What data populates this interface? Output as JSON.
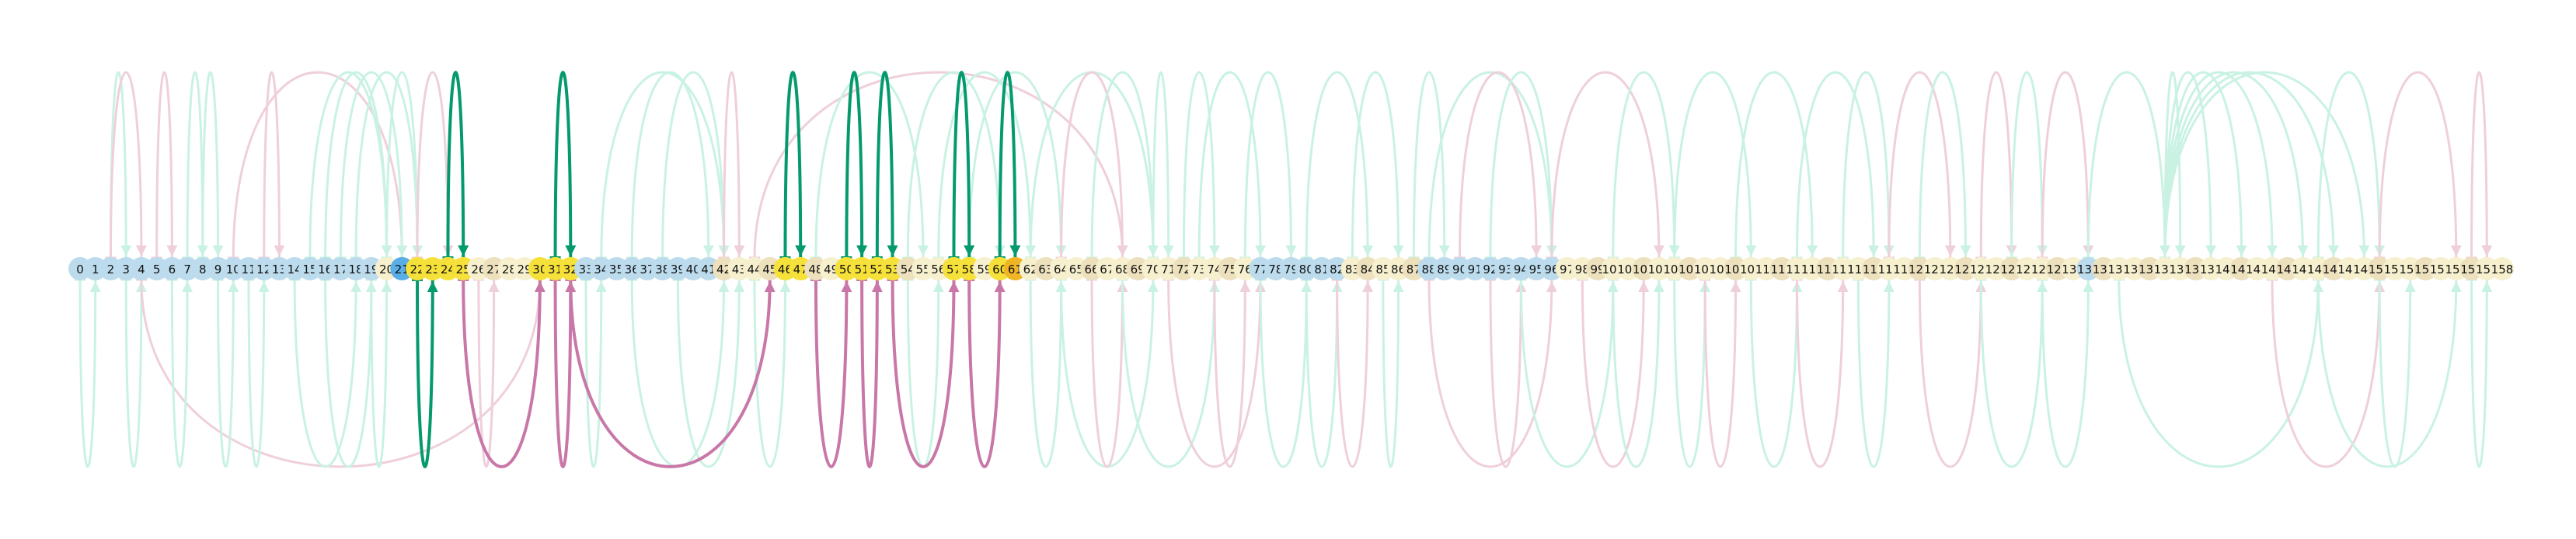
{
  "diagram": {
    "type": "arc-diagram",
    "node_labels": [
      "0",
      "1",
      "2",
      "3",
      "4",
      "5",
      "6",
      "7",
      "8",
      "9",
      "10",
      "11",
      "12",
      "13",
      "14",
      "15",
      "16",
      "17",
      "18",
      "19",
      "20",
      "21",
      "22",
      "23",
      "24",
      "25",
      "26",
      "27",
      "28",
      "29",
      "30",
      "31",
      "32",
      "33",
      "34",
      "35",
      "36",
      "37",
      "38",
      "39",
      "40",
      "41",
      "42",
      "43",
      "44",
      "45",
      "46",
      "47",
      "48",
      "49",
      "50",
      "51",
      "52",
      "53",
      "54",
      "55",
      "56",
      "57",
      "58",
      "59",
      "60",
      "61",
      "62",
      "63",
      "64",
      "65",
      "66",
      "67",
      "68",
      "69",
      "70",
      "71",
      "72",
      "73",
      "74",
      "75",
      "76",
      "77",
      "78",
      "79",
      "80",
      "81",
      "82",
      "83",
      "84",
      "85",
      "86",
      "87",
      "88",
      "89",
      "90",
      "91",
      "92",
      "93",
      "94",
      "95",
      "96",
      "97",
      "98",
      "99",
      "100",
      "101",
      "102",
      "103",
      "104",
      "105",
      "106",
      "107",
      "108",
      "109",
      "110",
      "111",
      "112",
      "113",
      "114",
      "115",
      "116",
      "117",
      "118",
      "119",
      "120",
      "121",
      "122",
      "123",
      "124",
      "125",
      "126",
      "127",
      "128",
      "129",
      "130",
      "131",
      "132",
      "133",
      "134",
      "135",
      "136",
      "137",
      "138",
      "139",
      "140",
      "141",
      "142",
      "143",
      "144",
      "145",
      "146",
      "147",
      "148",
      "149",
      "150",
      "151",
      "152",
      "153",
      "154",
      "155",
      "156",
      "157",
      "158"
    ],
    "highlighted_nodes": [
      21,
      22,
      23,
      24,
      25,
      30,
      31,
      32,
      46,
      47,
      50,
      51,
      52,
      53,
      57,
      58,
      60,
      61
    ],
    "highlight_edges": [
      {
        "from": 24,
        "to": 25,
        "side": "top",
        "color": "green"
      },
      {
        "from": 31,
        "to": 32,
        "side": "top",
        "color": "green"
      },
      {
        "from": 46,
        "to": 47,
        "side": "top",
        "color": "green"
      },
      {
        "from": 50,
        "to": 51,
        "side": "top",
        "color": "green"
      },
      {
        "from": 52,
        "to": 53,
        "side": "top",
        "color": "green"
      },
      {
        "from": 57,
        "to": 58,
        "side": "top",
        "color": "green"
      },
      {
        "from": 60,
        "to": 61,
        "side": "top",
        "color": "green"
      },
      {
        "from": 22,
        "to": 23,
        "side": "bottom",
        "color": "green"
      },
      {
        "from": 25,
        "to": 30,
        "side": "bottom",
        "color": "pink"
      },
      {
        "from": 31,
        "to": 32,
        "side": "bottom",
        "color": "pink"
      },
      {
        "from": 32,
        "to": 45,
        "side": "bottom",
        "color": "pink"
      },
      {
        "from": 48,
        "to": 50,
        "side": "bottom",
        "color": "pink"
      },
      {
        "from": 51,
        "to": 52,
        "side": "bottom",
        "color": "pink"
      },
      {
        "from": 53,
        "to": 57,
        "side": "bottom",
        "color": "pink"
      },
      {
        "from": 58,
        "to": 60,
        "side": "bottom",
        "color": "pink"
      }
    ],
    "background_edges": [
      {
        "from": 2,
        "to": 3,
        "side": "top",
        "color": "mint"
      },
      {
        "from": 2,
        "to": 4,
        "side": "top",
        "color": "pink"
      },
      {
        "from": 5,
        "to": 6,
        "side": "top",
        "color": "pink"
      },
      {
        "from": 7,
        "to": 8,
        "side": "top",
        "color": "mint"
      },
      {
        "from": 8,
        "to": 9,
        "side": "top",
        "color": "mint"
      },
      {
        "from": 10,
        "to": 21,
        "side": "top",
        "color": "pink"
      },
      {
        "from": 12,
        "to": 13,
        "side": "top",
        "color": "pink"
      },
      {
        "from": 15,
        "to": 20,
        "side": "top",
        "color": "mint"
      },
      {
        "from": 16,
        "to": 20,
        "side": "top",
        "color": "mint"
      },
      {
        "from": 17,
        "to": 21,
        "side": "top",
        "color": "mint"
      },
      {
        "from": 18,
        "to": 22,
        "side": "top",
        "color": "mint"
      },
      {
        "from": 20,
        "to": 22,
        "side": "top",
        "color": "mint"
      },
      {
        "from": 22,
        "to": 24,
        "side": "top",
        "color": "pink"
      },
      {
        "from": 34,
        "to": 42,
        "side": "top",
        "color": "mint"
      },
      {
        "from": 36,
        "to": 41,
        "side": "top",
        "color": "mint"
      },
      {
        "from": 38,
        "to": 42,
        "side": "top",
        "color": "mint"
      },
      {
        "from": 42,
        "to": 43,
        "side": "top",
        "color": "pink"
      },
      {
        "from": 44,
        "to": 68,
        "side": "top",
        "color": "pink"
      },
      {
        "from": 48,
        "to": 55,
        "side": "top",
        "color": "mint"
      },
      {
        "from": 54,
        "to": 60,
        "side": "top",
        "color": "mint"
      },
      {
        "from": 56,
        "to": 62,
        "side": "top",
        "color": "mint"
      },
      {
        "from": 58,
        "to": 64,
        "side": "top",
        "color": "mint"
      },
      {
        "from": 62,
        "to": 70,
        "side": "top",
        "color": "mint"
      },
      {
        "from": 64,
        "to": 68,
        "side": "top",
        "color": "pink"
      },
      {
        "from": 66,
        "to": 70,
        "side": "top",
        "color": "mint"
      },
      {
        "from": 70,
        "to": 71,
        "side": "top",
        "color": "mint"
      },
      {
        "from": 72,
        "to": 74,
        "side": "top",
        "color": "mint"
      },
      {
        "from": 73,
        "to": 77,
        "side": "top",
        "color": "mint"
      },
      {
        "from": 76,
        "to": 79,
        "side": "top",
        "color": "mint"
      },
      {
        "from": 80,
        "to": 84,
        "side": "top",
        "color": "mint"
      },
      {
        "from": 83,
        "to": 86,
        "side": "top",
        "color": "mint"
      },
      {
        "from": 87,
        "to": 89,
        "side": "top",
        "color": "mint"
      },
      {
        "from": 88,
        "to": 96,
        "side": "top",
        "color": "mint"
      },
      {
        "from": 90,
        "to": 95,
        "side": "top",
        "color": "pink"
      },
      {
        "from": 92,
        "to": 96,
        "side": "top",
        "color": "mint"
      },
      {
        "from": 96,
        "to": 103,
        "side": "top",
        "color": "pink"
      },
      {
        "from": 100,
        "to": 104,
        "side": "top",
        "color": "mint"
      },
      {
        "from": 104,
        "to": 109,
        "side": "top",
        "color": "mint"
      },
      {
        "from": 108,
        "to": 113,
        "side": "top",
        "color": "mint"
      },
      {
        "from": 112,
        "to": 117,
        "side": "top",
        "color": "mint"
      },
      {
        "from": 115,
        "to": 118,
        "side": "top",
        "color": "mint"
      },
      {
        "from": 118,
        "to": 122,
        "side": "top",
        "color": "pink"
      },
      {
        "from": 120,
        "to": 123,
        "side": "top",
        "color": "mint"
      },
      {
        "from": 124,
        "to": 126,
        "side": "top",
        "color": "pink"
      },
      {
        "from": 126,
        "to": 128,
        "side": "top",
        "color": "mint"
      },
      {
        "from": 128,
        "to": 131,
        "side": "top",
        "color": "pink"
      },
      {
        "from": 131,
        "to": 136,
        "side": "top",
        "color": "mint"
      },
      {
        "from": 136,
        "to": 137,
        "side": "top",
        "color": "mint"
      },
      {
        "from": 136,
        "to": 139,
        "side": "top",
        "color": "mint"
      },
      {
        "from": 136,
        "to": 141,
        "side": "top",
        "color": "mint"
      },
      {
        "from": 136,
        "to": 143,
        "side": "top",
        "color": "mint"
      },
      {
        "from": 136,
        "to": 145,
        "side": "top",
        "color": "mint"
      },
      {
        "from": 136,
        "to": 147,
        "side": "top",
        "color": "mint"
      },
      {
        "from": 136,
        "to": 149,
        "side": "top",
        "color": "mint"
      },
      {
        "from": 146,
        "to": 150,
        "side": "top",
        "color": "mint"
      },
      {
        "from": 150,
        "to": 155,
        "side": "top",
        "color": "pink"
      },
      {
        "from": 156,
        "to": 157,
        "side": "top",
        "color": "pink"
      },
      {
        "from": 0,
        "to": 1,
        "side": "bottom",
        "color": "mint"
      },
      {
        "from": 3,
        "to": 4,
        "side": "bottom",
        "color": "mint"
      },
      {
        "from": 4,
        "to": 30,
        "side": "bottom",
        "color": "pink"
      },
      {
        "from": 6,
        "to": 7,
        "side": "bottom",
        "color": "mint"
      },
      {
        "from": 9,
        "to": 10,
        "side": "bottom",
        "color": "mint"
      },
      {
        "from": 11,
        "to": 12,
        "side": "bottom",
        "color": "mint"
      },
      {
        "from": 14,
        "to": 18,
        "side": "bottom",
        "color": "mint"
      },
      {
        "from": 16,
        "to": 19,
        "side": "bottom",
        "color": "mint"
      },
      {
        "from": 19,
        "to": 20,
        "side": "bottom",
        "color": "mint"
      },
      {
        "from": 26,
        "to": 27,
        "side": "bottom",
        "color": "pink"
      },
      {
        "from": 33,
        "to": 34,
        "side": "bottom",
        "color": "mint"
      },
      {
        "from": 36,
        "to": 42,
        "side": "bottom",
        "color": "mint"
      },
      {
        "from": 39,
        "to": 43,
        "side": "bottom",
        "color": "mint"
      },
      {
        "from": 44,
        "to": 46,
        "side": "bottom",
        "color": "mint"
      },
      {
        "from": 54,
        "to": 56,
        "side": "bottom",
        "color": "mint"
      },
      {
        "from": 62,
        "to": 64,
        "side": "bottom",
        "color": "mint"
      },
      {
        "from": 64,
        "to": 70,
        "side": "bottom",
        "color": "mint"
      },
      {
        "from": 66,
        "to": 68,
        "side": "bottom",
        "color": "pink"
      },
      {
        "from": 68,
        "to": 74,
        "side": "bottom",
        "color": "mint"
      },
      {
        "from": 71,
        "to": 77,
        "side": "bottom",
        "color": "pink"
      },
      {
        "from": 74,
        "to": 76,
        "side": "bottom",
        "color": "pink"
      },
      {
        "from": 77,
        "to": 80,
        "side": "bottom",
        "color": "mint"
      },
      {
        "from": 80,
        "to": 82,
        "side": "bottom",
        "color": "mint"
      },
      {
        "from": 82,
        "to": 84,
        "side": "bottom",
        "color": "pink"
      },
      {
        "from": 85,
        "to": 86,
        "side": "bottom",
        "color": "mint"
      },
      {
        "from": 88,
        "to": 96,
        "side": "bottom",
        "color": "pink"
      },
      {
        "from": 92,
        "to": 94,
        "side": "bottom",
        "color": "pink"
      },
      {
        "from": 94,
        "to": 100,
        "side": "bottom",
        "color": "mint"
      },
      {
        "from": 98,
        "to": 102,
        "side": "bottom",
        "color": "pink"
      },
      {
        "from": 100,
        "to": 103,
        "side": "bottom",
        "color": "mint"
      },
      {
        "from": 104,
        "to": 106,
        "side": "bottom",
        "color": "mint"
      },
      {
        "from": 106,
        "to": 108,
        "side": "bottom",
        "color": "pink"
      },
      {
        "from": 109,
        "to": 112,
        "side": "bottom",
        "color": "mint"
      },
      {
        "from": 112,
        "to": 115,
        "side": "bottom",
        "color": "pink"
      },
      {
        "from": 116,
        "to": 118,
        "side": "bottom",
        "color": "mint"
      },
      {
        "from": 120,
        "to": 124,
        "side": "bottom",
        "color": "pink"
      },
      {
        "from": 124,
        "to": 128,
        "side": "bottom",
        "color": "mint"
      },
      {
        "from": 128,
        "to": 131,
        "side": "bottom",
        "color": "mint"
      },
      {
        "from": 133,
        "to": 146,
        "side": "bottom",
        "color": "mint"
      },
      {
        "from": 143,
        "to": 150,
        "side": "bottom",
        "color": "pink"
      },
      {
        "from": 146,
        "to": 155,
        "side": "bottom",
        "color": "mint"
      },
      {
        "from": 150,
        "to": 152,
        "side": "bottom",
        "color": "mint"
      },
      {
        "from": 156,
        "to": 157,
        "side": "bottom",
        "color": "mint"
      }
    ],
    "colors": {
      "green": "#049a6e",
      "pink": "#c877a8",
      "mint": "#c9f2e3",
      "pink_light": "#efcfdc",
      "node_blue": "#bcdcee",
      "node_cream": "#f7f0ce",
      "node_sand": "#ede0bd",
      "node_yellow": "#f6e13a",
      "node_orange": "#f0b524",
      "node_accent_blue": "#5aaee8"
    }
  }
}
